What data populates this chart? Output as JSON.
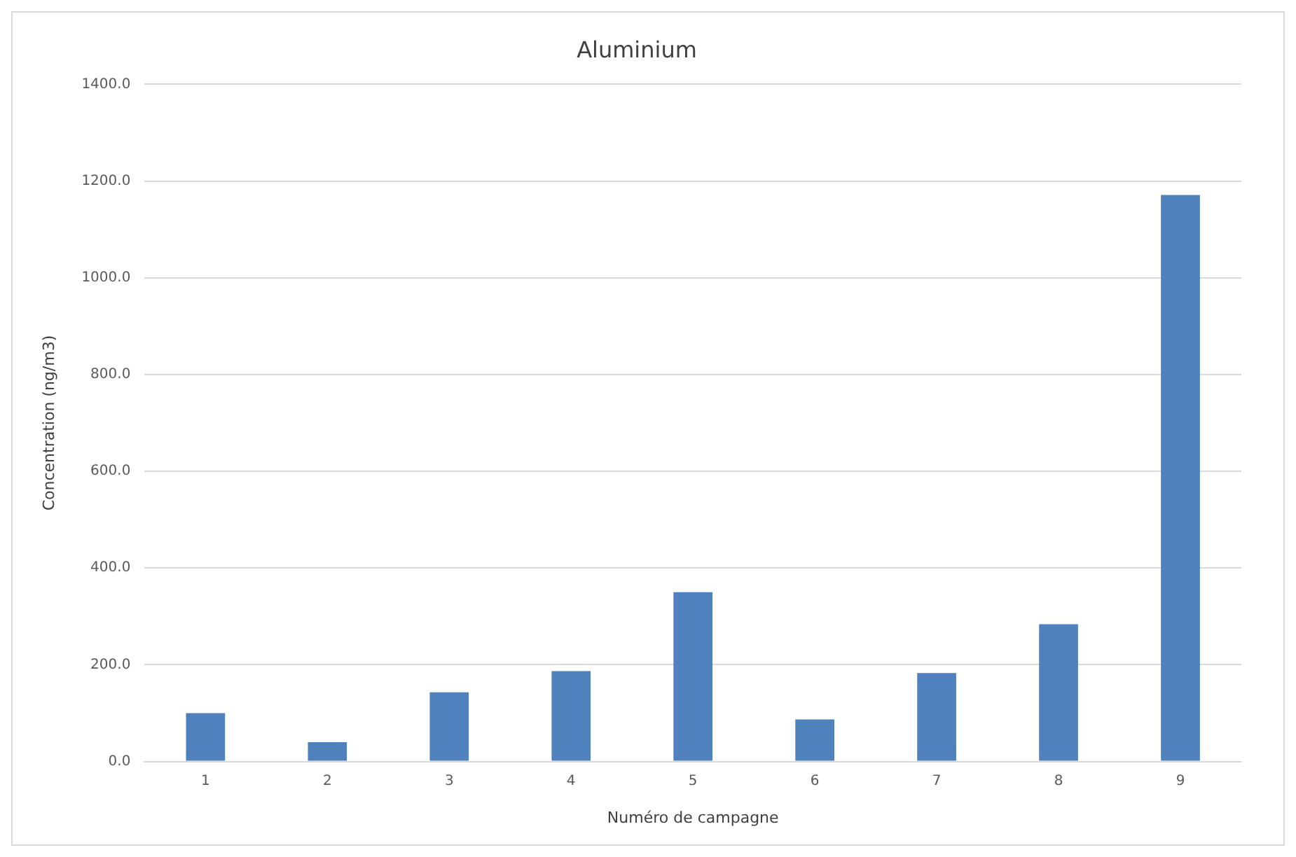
{
  "chart_data": {
    "type": "bar",
    "title": "Aluminium",
    "xlabel": "Numéro de campagne",
    "ylabel": "Concentration (ng/m3)",
    "categories": [
      "1",
      "2",
      "3",
      "4",
      "5",
      "6",
      "7",
      "8",
      "9"
    ],
    "values": [
      100,
      40,
      143,
      187,
      350,
      87,
      183,
      284,
      1171
    ],
    "color": "#4f81bd",
    "ylim": [
      0,
      1400
    ],
    "yticks": [
      {
        "value": 0,
        "label": "0.0"
      },
      {
        "value": 200,
        "label": "200.0"
      },
      {
        "value": 400,
        "label": "400.0"
      },
      {
        "value": 600,
        "label": "600.0"
      },
      {
        "value": 800,
        "label": "800.0"
      },
      {
        "value": 1000,
        "label": "1000.0"
      },
      {
        "value": 1200,
        "label": "1200.0"
      },
      {
        "value": 1400,
        "label": "1400.0"
      }
    ],
    "grid": "y",
    "legend": false
  }
}
